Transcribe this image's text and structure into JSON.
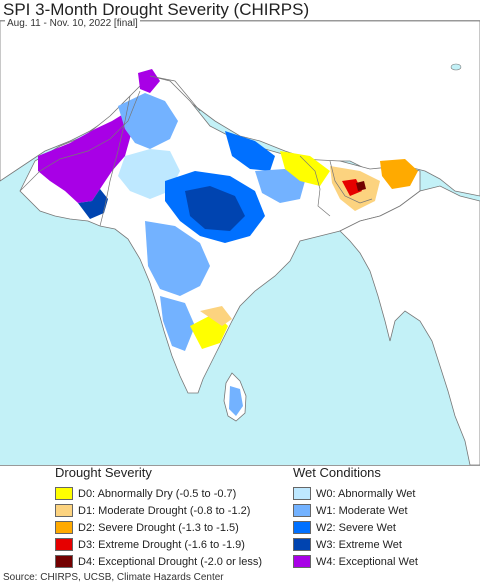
{
  "header": {
    "title": "SPI 3-Month Drought Severity (CHIRPS)",
    "subtitle": "Aug. 11 - Nov. 10, 2022 [final]"
  },
  "colors": {
    "ocean": "#c3f1f7",
    "land": "#ffffff",
    "border": "#777777"
  },
  "legend": {
    "drought": {
      "heading": "Drought Severity",
      "items": [
        {
          "label": "D0: Abnormally Dry (-0.5 to -0.7)",
          "color": "#ffff00"
        },
        {
          "label": "D1: Moderate Drought (-0.8 to -1.2)",
          "color": "#fcd37f"
        },
        {
          "label": "D2: Severe Drought (-1.3 to -1.5)",
          "color": "#ffaa00"
        },
        {
          "label": "D3: Extreme Drought (-1.6 to -1.9)",
          "color": "#e60000"
        },
        {
          "label": "D4: Exceptional Drought (-2.0 or less)",
          "color": "#730000"
        }
      ]
    },
    "wet": {
      "heading": "Wet Conditions",
      "items": [
        {
          "label": "W0: Abnormally Wet",
          "color": "#bee8ff"
        },
        {
          "label": "W1: Moderate Wet",
          "color": "#73b2ff"
        },
        {
          "label": "W2: Severe Wet",
          "color": "#0070ff"
        },
        {
          "label": "W3: Extreme Wet",
          "color": "#0044b0"
        },
        {
          "label": "W4: Exceptional Wet",
          "color": "#a800e6"
        }
      ]
    }
  },
  "footer": {
    "source": "Source: CHIRPS, UCSB, Climate Hazards Center"
  }
}
